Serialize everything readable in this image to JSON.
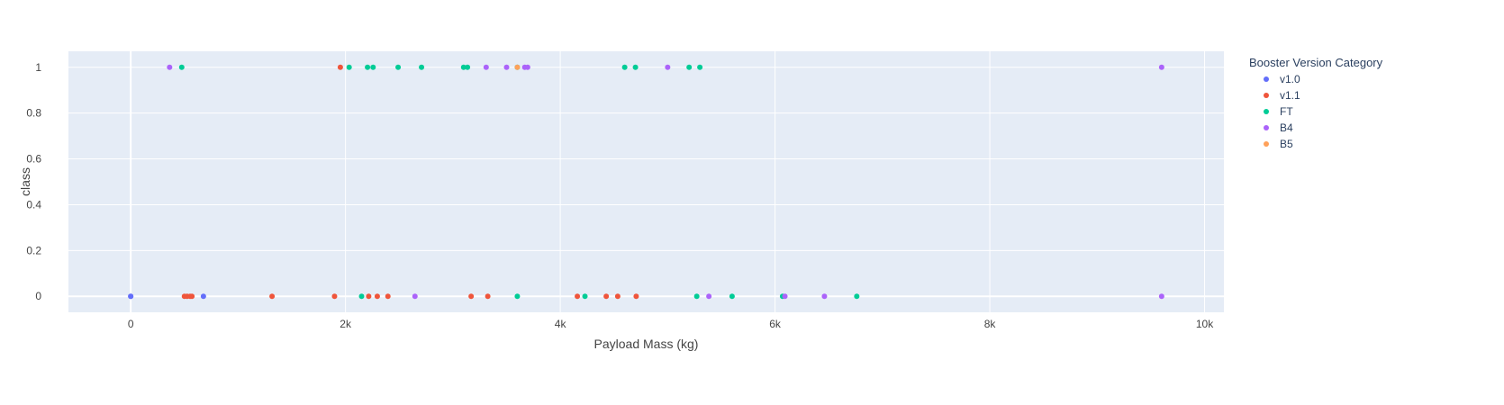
{
  "chart_data": {
    "type": "scatter",
    "title": "",
    "xlabel": "Payload Mass (kg)",
    "ylabel": "class",
    "xlim": [
      -580,
      10180
    ],
    "ylim": [
      -0.07,
      1.07
    ],
    "x_ticks": [
      0,
      2000,
      4000,
      6000,
      8000,
      10000
    ],
    "x_tick_labels": [
      "0",
      "2k",
      "4k",
      "6k",
      "8k",
      "10k"
    ],
    "y_ticks": [
      0,
      0.2,
      0.4,
      0.6,
      0.8,
      1
    ],
    "y_tick_labels": [
      "0",
      "0.2",
      "0.4",
      "0.6",
      "0.8",
      "1"
    ],
    "grid": true,
    "background": "#E5ECF6",
    "legend": {
      "title": "Booster Version Category",
      "placement": "right"
    },
    "series": [
      {
        "name": "v1.0",
        "color": "#636EFA",
        "points": [
          [
            0,
            0
          ],
          [
            0,
            0
          ],
          [
            677,
            0
          ]
        ]
      },
      {
        "name": "v1.1",
        "color": "#EF553B",
        "points": [
          [
            500,
            0
          ],
          [
            525,
            0
          ],
          [
            570,
            0
          ],
          [
            1316,
            0
          ],
          [
            1898,
            0
          ],
          [
            2216,
            0
          ],
          [
            2296,
            0
          ],
          [
            2395,
            0
          ],
          [
            3170,
            0
          ],
          [
            3325,
            0
          ],
          [
            4159,
            0
          ],
          [
            4428,
            0
          ],
          [
            4535,
            0
          ],
          [
            4707,
            0
          ],
          [
            1952,
            1
          ],
          [
            553,
            0
          ]
        ]
      },
      {
        "name": "FT",
        "color": "#00CC96",
        "points": [
          [
            475,
            1
          ],
          [
            2034,
            1
          ],
          [
            2205,
            1
          ],
          [
            2257,
            1
          ],
          [
            2490,
            1
          ],
          [
            2708,
            1
          ],
          [
            3100,
            1
          ],
          [
            3136,
            1
          ],
          [
            3600,
            1
          ],
          [
            4600,
            1
          ],
          [
            4700,
            1
          ],
          [
            5200,
            1
          ],
          [
            5300,
            1
          ],
          [
            2150,
            0
          ],
          [
            3600,
            0
          ],
          [
            4230,
            0
          ],
          [
            5271,
            0
          ],
          [
            5600,
            0
          ],
          [
            6070,
            0
          ],
          [
            6761,
            0
          ]
        ]
      },
      {
        "name": "B4",
        "color": "#AB63FA",
        "points": [
          [
            362,
            1
          ],
          [
            3310,
            1
          ],
          [
            3500,
            1
          ],
          [
            3669,
            1
          ],
          [
            3696,
            1
          ],
          [
            5000,
            1
          ],
          [
            9600,
            1
          ],
          [
            2647,
            0
          ],
          [
            5384,
            0
          ],
          [
            6092,
            0
          ],
          [
            6460,
            0
          ],
          [
            9600,
            0
          ]
        ]
      },
      {
        "name": "B5",
        "color": "#FFA15A",
        "points": [
          [
            3600,
            1
          ]
        ]
      }
    ]
  }
}
